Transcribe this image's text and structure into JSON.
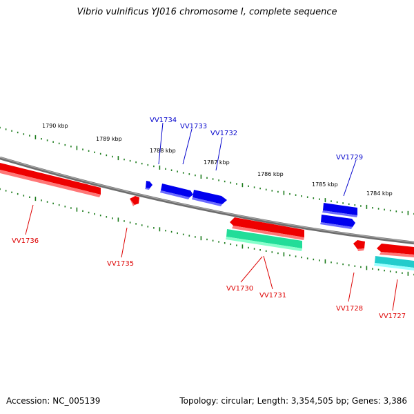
{
  "title": "Vibrio vulnificus YJ016 chromosome I, complete sequence",
  "footer": {
    "accession": "Accession: NC_005139",
    "summary": "Topology: circular; Length: 3,354,505 bp; Genes: 3,386"
  },
  "colors": {
    "backbone": "#808080",
    "tick": "#1a7a1a",
    "forward_label": "#0000cc",
    "reverse_label": "#dd0000",
    "gene_blue": "#0000ee",
    "gene_red": "#ee0000",
    "gene_green": "#22dd99",
    "gene_cyan": "#22cccc"
  },
  "scale": {
    "labels": [
      "1790 kbp",
      "1789 kbp",
      "1788 kbp",
      "1787 kbp",
      "1786 kbp",
      "1785 kbp",
      "1784 kbp"
    ]
  },
  "genes": [
    {
      "id": "VV1734",
      "strand": "forward",
      "color": "blue"
    },
    {
      "id": "VV1733",
      "strand": "forward",
      "color": "blue"
    },
    {
      "id": "VV1732",
      "strand": "forward",
      "color": "blue"
    },
    {
      "id": "VV1729",
      "strand": "forward",
      "color": "blue"
    },
    {
      "id": "VV1736",
      "strand": "reverse",
      "color": "red"
    },
    {
      "id": "VV1735",
      "strand": "reverse",
      "color": "red"
    },
    {
      "id": "VV1730",
      "strand": "reverse",
      "color": "red"
    },
    {
      "id": "VV1731",
      "strand": "reverse",
      "color": "green"
    },
    {
      "id": "VV1728",
      "strand": "reverse",
      "color": "red"
    },
    {
      "id": "VV1727",
      "strand": "reverse",
      "color": "cyan"
    }
  ]
}
